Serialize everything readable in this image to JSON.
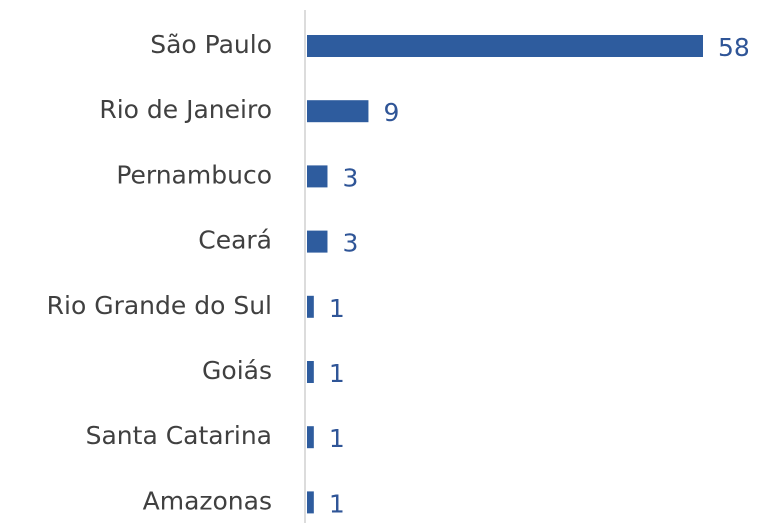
{
  "chart_data": {
    "type": "bar",
    "orientation": "horizontal",
    "categories": [
      "São Paulo",
      "Rio de Janeiro",
      "Pernambuco",
      "Ceará",
      "Rio Grande do Sul",
      "Goiás",
      "Santa Catarina",
      "Amazonas"
    ],
    "values": [
      58,
      9,
      3,
      3,
      1,
      1,
      1,
      1
    ],
    "color": "#2e5c9e"
  }
}
